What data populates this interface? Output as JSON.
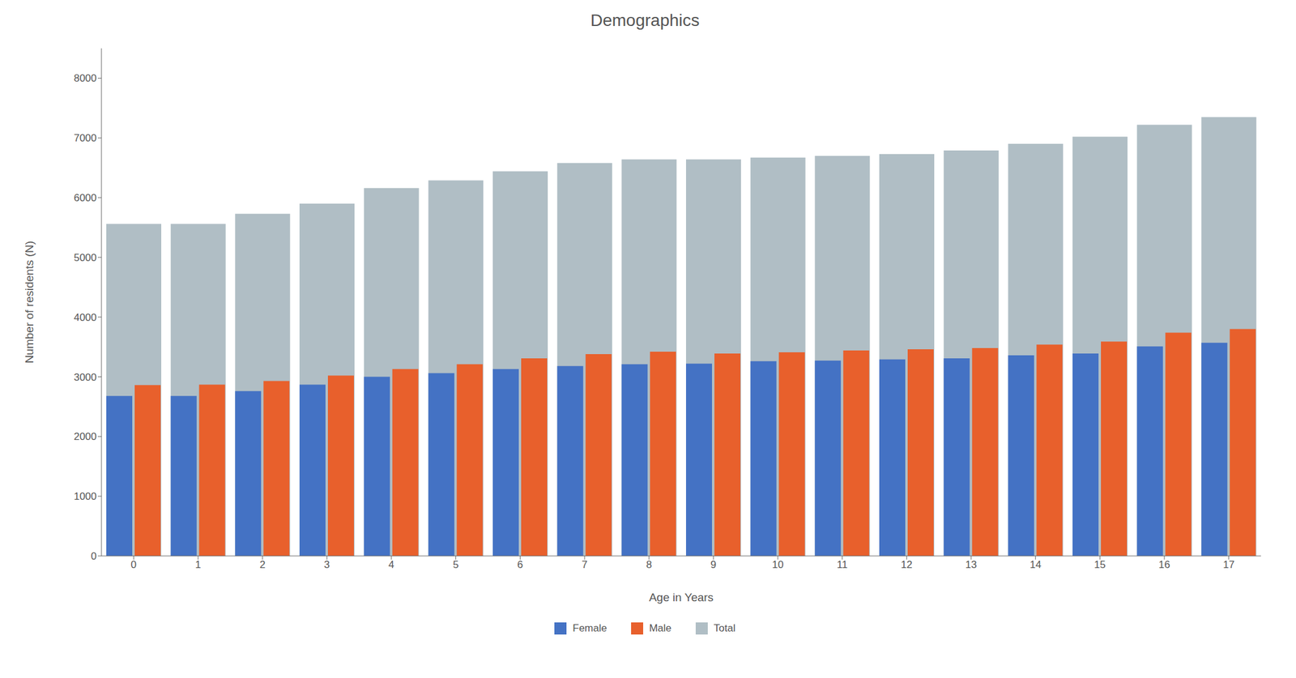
{
  "chart_data": {
    "type": "bar",
    "title": "Demographics",
    "xlabel": "Age in Years",
    "ylabel": "Number of residents (N)",
    "categories": [
      "0",
      "1",
      "2",
      "3",
      "4",
      "5",
      "6",
      "7",
      "8",
      "9",
      "10",
      "11",
      "12",
      "13",
      "14",
      "15",
      "16",
      "17"
    ],
    "series": [
      {
        "name": "Female",
        "color": "#4472C4",
        "values": [
          2680,
          2680,
          2760,
          2870,
          3000,
          3060,
          3130,
          3180,
          3210,
          3220,
          3260,
          3270,
          3290,
          3310,
          3360,
          3390,
          3510,
          3570
        ]
      },
      {
        "name": "Male",
        "color": "#E8602C",
        "values": [
          2860,
          2870,
          2930,
          3020,
          3130,
          3210,
          3310,
          3380,
          3420,
          3390,
          3410,
          3440,
          3460,
          3480,
          3540,
          3590,
          3740,
          3800
        ]
      },
      {
        "name": "Total",
        "color": "#B0BEC5",
        "values": [
          5560,
          5560,
          5730,
          5900,
          6160,
          6290,
          6440,
          6580,
          6640,
          6640,
          6670,
          6700,
          6730,
          6790,
          6900,
          7020,
          7220,
          7350
        ]
      }
    ],
    "ylim": [
      0,
      8500
    ],
    "yticks": [
      0,
      1000,
      2000,
      3000,
      4000,
      5000,
      6000,
      7000,
      8000
    ],
    "grid": false,
    "legend": "bottom"
  }
}
